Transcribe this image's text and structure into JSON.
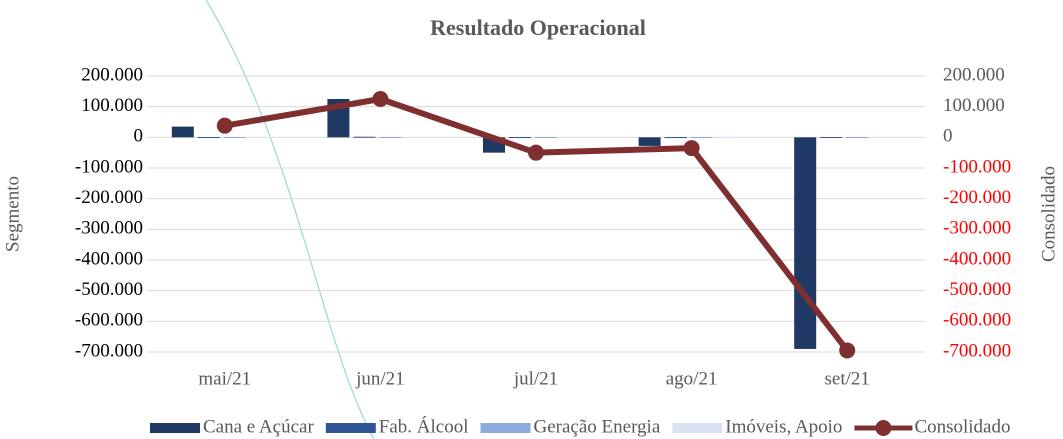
{
  "chart_data": {
    "type": "bar_line",
    "title": "Resultado Operacional",
    "ylabel": "Segmento",
    "y2label": "Consolidado",
    "categories": [
      "mai/21",
      "jun/21",
      "jul/21",
      "ago/21",
      "set/21"
    ],
    "series": [
      {
        "name": "Cana e Açúcar",
        "color": "#1f3864",
        "type": "bar",
        "values": [
          35000,
          125000,
          -50000,
          -28000,
          -690000
        ]
      },
      {
        "name": "Fab. Álcool",
        "color": "#2f5597",
        "type": "bar",
        "values": [
          1000,
          2000,
          1000,
          1000,
          1000
        ]
      },
      {
        "name": "Geração Energia",
        "color": "#8faadc",
        "type": "bar",
        "values": [
          1000,
          1000,
          1000,
          1000,
          1000
        ]
      },
      {
        "name": "Imóveis, Apoio",
        "color": "#dae3f3",
        "type": "bar",
        "values": [
          1000,
          1000,
          1000,
          2000,
          1000
        ]
      },
      {
        "name": "Consolidado",
        "color": "#7f2f2f",
        "type": "line",
        "axis": "y2",
        "values": [
          38000,
          125000,
          -50000,
          -35000,
          -695000
        ]
      }
    ],
    "ylim": [
      -700000,
      200000
    ],
    "yticks": [
      {
        "value": 200000,
        "label": "200.000"
      },
      {
        "value": 100000,
        "label": "100.000"
      },
      0,
      {
        "value": -100000,
        "label": "-100.000"
      },
      {
        "value": -200000,
        "label": "-200.000"
      },
      {
        "value": -300000,
        "label": "-300.000"
      },
      {
        "value": -400000,
        "label": "-400.000"
      },
      {
        "value": -500000,
        "label": "-500.000"
      },
      {
        "value": -600000,
        "label": "-600.000"
      },
      {
        "value": -700000,
        "label": "-700.000"
      }
    ],
    "y2lim": [
      -700000,
      200000
    ],
    "y2ticks": [
      {
        "value": 200000,
        "label": "200.000"
      },
      {
        "value": 100000,
        "label": "100.000"
      },
      0,
      {
        "value": -100000,
        "label": "-100.000"
      },
      {
        "value": -200000,
        "label": "-200.000"
      },
      {
        "value": -300000,
        "label": "-300.000"
      },
      {
        "value": -400000,
        "label": "-400.000"
      },
      {
        "value": -500000,
        "label": "-500.000"
      },
      {
        "value": -600000,
        "label": "-600.000"
      },
      {
        "value": -700000,
        "label": "-700.000"
      }
    ],
    "y2_negative_color": "#ff0000",
    "grid": true,
    "legend": "bottom"
  }
}
